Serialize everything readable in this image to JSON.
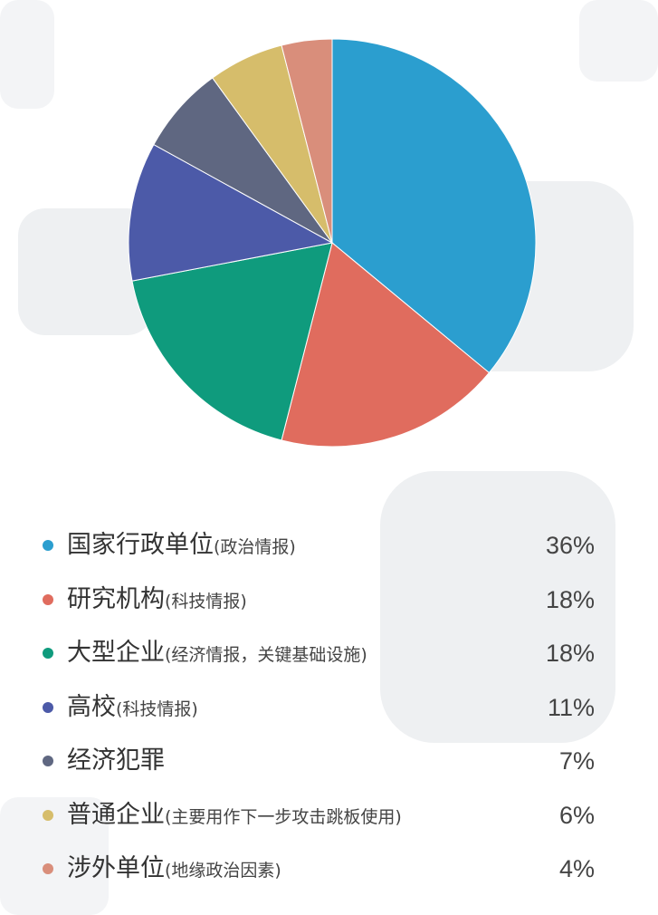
{
  "chart_data": {
    "type": "pie",
    "slices": [
      {
        "label": "国家行政单位",
        "note": "(政治情报)",
        "value": 36,
        "display": "36%",
        "color": "#2b9ecf"
      },
      {
        "label": "研究机构",
        "note": "(科技情报)",
        "value": 18,
        "display": "18%",
        "color": "#e06c5e"
      },
      {
        "label": "大型企业",
        "note": "(经济情报，关键基础设施)",
        "value": 18,
        "display": "18%",
        "color": "#0f9b7d"
      },
      {
        "label": "高校",
        "note": "(科技情报)",
        "value": 11,
        "display": "11%",
        "color": "#4c5aa8"
      },
      {
        "label": "经济犯罪",
        "note": "",
        "value": 7,
        "display": "7%",
        "color": "#5f6781"
      },
      {
        "label": "普通企业",
        "note": "(主要用作下一步攻击跳板使用)",
        "value": 6,
        "display": "6%",
        "color": "#d6bd6b"
      },
      {
        "label": "涉外单位",
        "note": "(地缘政治因素)",
        "value": 4,
        "display": "4%",
        "color": "#d98e7b"
      }
    ],
    "start_angle_deg": 0,
    "direction": "clockwise",
    "legend_position": "bottom"
  }
}
